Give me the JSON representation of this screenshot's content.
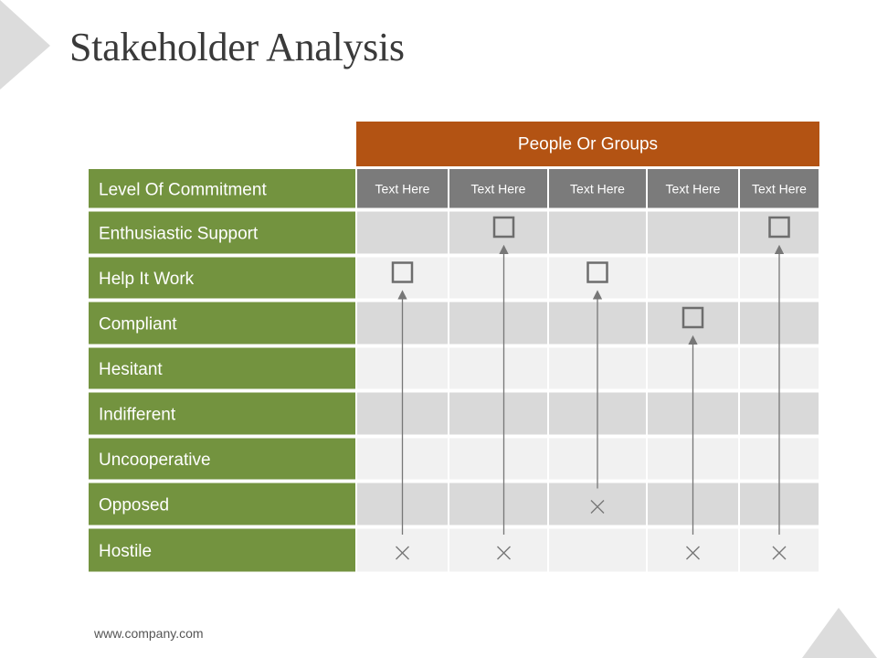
{
  "title": "Stakeholder Analysis",
  "footer": "www.company.com",
  "colors": {
    "header_orange": "#b35313",
    "row_green": "#73933f",
    "col_header_gray": "#7b7b7b",
    "cell_dark": "#d9d9d9",
    "cell_light": "#f1f1f1",
    "marker": "#777777",
    "deco_gray": "#dcdcdc"
  },
  "table": {
    "group_header": "People Or Groups",
    "row_header": "Level Of Commitment",
    "columns": [
      "Text Here",
      "Text Here",
      "Text Here",
      "Text Here",
      "Text Here"
    ],
    "rows": [
      "Enthusiastic Support",
      "Help It Work",
      "Compliant",
      "Hesitant",
      "Indifferent",
      "Uncooperative",
      "Opposed",
      "Hostile"
    ]
  },
  "stakeholders": [
    {
      "column": 0,
      "current": "Hostile",
      "desired": "Help It Work"
    },
    {
      "column": 1,
      "current": "Hostile",
      "desired": "Enthusiastic Support"
    },
    {
      "column": 2,
      "current": "Opposed",
      "desired": "Help It Work"
    },
    {
      "column": 3,
      "current": "Hostile",
      "desired": "Compliant"
    },
    {
      "column": 4,
      "current": "Hostile",
      "desired": "Enthusiastic Support"
    }
  ]
}
